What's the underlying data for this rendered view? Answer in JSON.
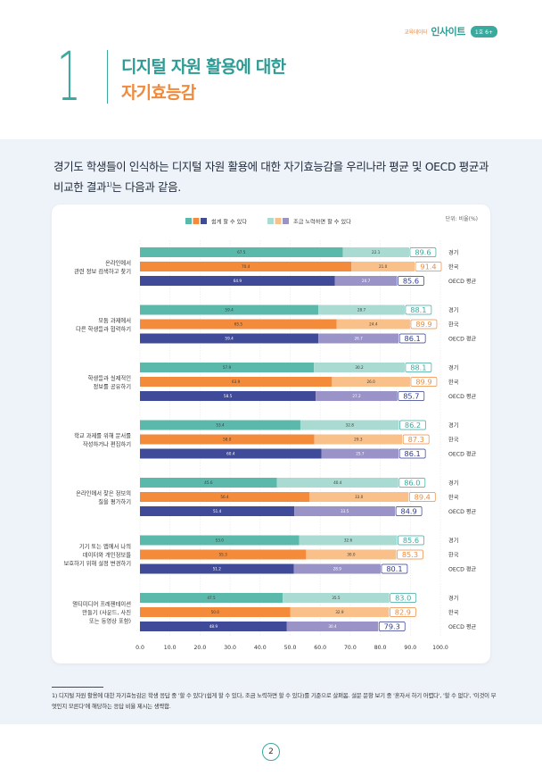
{
  "header": {
    "brand_small": "교육데이터",
    "brand_main": "인사이트",
    "badge": "1호 6+"
  },
  "section": {
    "number": "1",
    "title_line1": "디지털 자원 활용에 대한",
    "title_line2": "자기효능감"
  },
  "intro": {
    "text_part1": "경기도 학생들이 인식하는 디지털 자원 활용에 대한 자기효능감을 우리나라 평균 및 OECD 평균과 비교한 결과",
    "footnote_mark": "1)",
    "text_part2": "는 다음과 같음."
  },
  "footnote": {
    "text": "1) 디지털 자원 활용에 대한 자기효능감은 학생 응답 중 '할 수 있다'(쉽게 할 수 있다, 조금 노력하면 할 수 있다)를 기준으로 살펴봄. 설문 문항 보기 중 '혼자서 하기 어렵다', '할 수 없다', '이것이 무엇인지 모른다'에 해당하는 응답 비율 제시는 생략함."
  },
  "page_number": "2",
  "colors": {
    "gyeonggi_easy": "#5bb9ac",
    "gyeonggi_effort": "#a9dbd3",
    "korea_easy": "#f48b3a",
    "korea_effort": "#f9c08a",
    "oecd_easy": "#3f4a98",
    "oecd_effort": "#9a93c7",
    "teal": "#3aa99e",
    "orange": "#f08a3c",
    "navy": "#2f3a8c"
  },
  "chart_data": {
    "type": "bar",
    "orientation": "horizontal",
    "stacked": true,
    "unit_label": "단위: 비율(%)",
    "legend": [
      "쉽게 할 수 있다",
      "조금 노력하면 할 수 있다"
    ],
    "xlim": [
      0,
      100
    ],
    "xticks": [
      "0.0",
      "10.0",
      "20.0",
      "30.0",
      "40.0",
      "50.0",
      "60.0",
      "70.0",
      "80.0",
      "90.0",
      "100.0"
    ],
    "groups_labels": [
      "경기",
      "한국",
      "OECD 평균"
    ],
    "categories": [
      {
        "label": [
          "온라인에서",
          "관련 정보 검색하고 찾기"
        ],
        "rows": [
          {
            "group": "경기",
            "easy": 67.5,
            "effort": 22.1,
            "total": 89.6
          },
          {
            "group": "한국",
            "easy": 70.4,
            "effort": 21.0,
            "total": 91.4
          },
          {
            "group": "OECD 평균",
            "easy": 64.9,
            "effort": 20.7,
            "total": 85.6
          }
        ]
      },
      {
        "label": [
          "모둠 과제에서",
          "다른 학생들과 협력하기"
        ],
        "rows": [
          {
            "group": "경기",
            "easy": 59.4,
            "effort": 28.7,
            "total": 88.1
          },
          {
            "group": "한국",
            "easy": 65.5,
            "effort": 24.4,
            "total": 89.9
          },
          {
            "group": "OECD 평균",
            "easy": 59.4,
            "effort": 26.7,
            "total": 86.1
          }
        ]
      },
      {
        "label": [
          "학생들과 실제적인",
          "정보를 공유하기"
        ],
        "rows": [
          {
            "group": "경기",
            "easy": 57.9,
            "effort": 30.2,
            "total": 88.1
          },
          {
            "group": "한국",
            "easy": 63.9,
            "effort": 26.0,
            "total": 89.9
          },
          {
            "group": "OECD 평균",
            "easy": 58.5,
            "effort": 27.2,
            "total": 85.7
          }
        ]
      },
      {
        "label": [
          "학교 과제를 위해 문서를",
          "작성하거나 편집하기"
        ],
        "rows": [
          {
            "group": "경기",
            "easy": 53.4,
            "effort": 32.8,
            "total": 86.2
          },
          {
            "group": "한국",
            "easy": 58.0,
            "effort": 29.3,
            "total": 87.3
          },
          {
            "group": "OECD 평균",
            "easy": 60.4,
            "effort": 25.7,
            "total": 86.1
          }
        ]
      },
      {
        "label": [
          "온라인에서 찾은 정보의",
          "질을 평가하기"
        ],
        "rows": [
          {
            "group": "경기",
            "easy": 45.6,
            "effort": 40.4,
            "total": 86.0
          },
          {
            "group": "한국",
            "easy": 56.4,
            "effort": 33.0,
            "total": 89.4
          },
          {
            "group": "OECD 평균",
            "easy": 51.4,
            "effort": 33.5,
            "total": 84.9
          }
        ]
      },
      {
        "label": [
          "기기 또는 앱에서 나의",
          "데이터와 개인정보를",
          "보호하기 위해 설정 변경하기"
        ],
        "rows": [
          {
            "group": "경기",
            "easy": 53.0,
            "effort": 32.6,
            "total": 85.6
          },
          {
            "group": "한국",
            "easy": 55.3,
            "effort": 30.0,
            "total": 85.3
          },
          {
            "group": "OECD 평균",
            "easy": 51.2,
            "effort": 28.9,
            "total": 80.1
          }
        ]
      },
      {
        "label": [
          "멀티미디어 프레젠테이션",
          "만들기 (사운드, 사진",
          "또는 동영상 포함)"
        ],
        "rows": [
          {
            "group": "경기",
            "easy": 47.5,
            "effort": 35.5,
            "total": 83.0
          },
          {
            "group": "한국",
            "easy": 50.0,
            "effort": 32.9,
            "total": 82.9
          },
          {
            "group": "OECD 평균",
            "easy": 48.9,
            "effort": 30.4,
            "total": 79.3
          }
        ]
      }
    ]
  }
}
